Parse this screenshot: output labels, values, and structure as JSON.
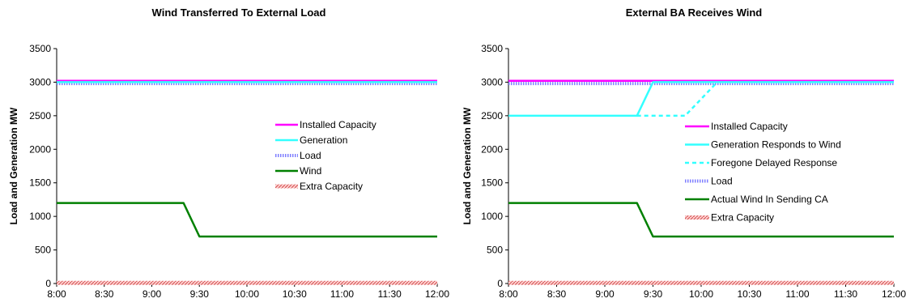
{
  "chart_data": [
    {
      "type": "line",
      "title": "Wind Transferred To External Load",
      "ylabel": "Load and Generation MW",
      "xlabel": "",
      "x_categories": [
        "8:00",
        "8:30",
        "9:00",
        "9:30",
        "10:00",
        "10:30",
        "11:00",
        "11:30",
        "12:00"
      ],
      "xlim_hours": [
        8,
        12
      ],
      "ylim": [
        0,
        3500
      ],
      "yticks": [
        "0",
        "500",
        "1000",
        "1500",
        "2000",
        "2500",
        "3000",
        "3500"
      ],
      "grid": false,
      "legend_position": "right-middle",
      "series": [
        {
          "name": "Installed Capacity",
          "color": "#ff00ff",
          "style": "solid",
          "points": [
            [
              "8:00",
              3020
            ],
            [
              "12:00",
              3020
            ]
          ]
        },
        {
          "name": "Generation",
          "color": "#33ffff",
          "style": "solid",
          "points": [
            [
              "8:00",
              3000
            ],
            [
              "12:00",
              3000
            ]
          ]
        },
        {
          "name": "Load",
          "color": "#7f7fff",
          "style": "dotted-band",
          "points": [
            [
              "8:00",
              2980
            ],
            [
              "12:00",
              2980
            ]
          ]
        },
        {
          "name": "Wind",
          "color": "#008000",
          "style": "solid",
          "points": [
            [
              "8:00",
              1200
            ],
            [
              "9:20",
              1200
            ],
            [
              "9:30",
              700
            ],
            [
              "12:00",
              700
            ]
          ]
        },
        {
          "name": "Extra Capacity",
          "color": "#ff8080",
          "style": "hatched-band",
          "points": [
            [
              "8:00",
              10
            ],
            [
              "12:00",
              10
            ]
          ]
        }
      ]
    },
    {
      "type": "line",
      "title": "External BA Receives Wind",
      "ylabel": "Load and Generation MW",
      "xlabel": "",
      "x_categories": [
        "8:00",
        "8:30",
        "9:00",
        "9:30",
        "10:00",
        "10:30",
        "11:00",
        "11:30",
        "12:00"
      ],
      "xlim_hours": [
        8,
        12
      ],
      "ylim": [
        0,
        3500
      ],
      "yticks": [
        "0",
        "500",
        "1000",
        "1500",
        "2000",
        "2500",
        "3000",
        "3500"
      ],
      "grid": false,
      "legend_position": "right-middle",
      "series": [
        {
          "name": "Installed Capacity",
          "color": "#ff00ff",
          "style": "solid",
          "points": [
            [
              "8:00",
              3020
            ],
            [
              "9:30",
              3020
            ],
            [
              "12:00",
              3020
            ]
          ]
        },
        {
          "name": "Generation Responds to Wind",
          "color": "#33ffff",
          "style": "solid",
          "points": [
            [
              "8:00",
              2500
            ],
            [
              "9:20",
              2500
            ],
            [
              "9:30",
              3000
            ],
            [
              "12:00",
              3000
            ]
          ]
        },
        {
          "name": "Foregone Delayed Response",
          "color": "#33ffff",
          "style": "dashed",
          "points": [
            [
              "9:20",
              2500
            ],
            [
              "9:50",
              2500
            ],
            [
              "10:10",
              3000
            ]
          ]
        },
        {
          "name": "Load",
          "color": "#7f7fff",
          "style": "dotted-band",
          "points": [
            [
              "8:00",
              2980
            ],
            [
              "12:00",
              2980
            ]
          ]
        },
        {
          "name": "Actual Wind In Sending CA",
          "color": "#008000",
          "style": "solid",
          "points": [
            [
              "8:00",
              1200
            ],
            [
              "9:20",
              1200
            ],
            [
              "9:30",
              700
            ],
            [
              "12:00",
              700
            ]
          ]
        },
        {
          "name": "Extra Capacity",
          "color": "#ff8080",
          "style": "hatched-band",
          "points": [
            [
              "8:00",
              10
            ],
            [
              "12:00",
              10
            ]
          ]
        }
      ]
    }
  ]
}
